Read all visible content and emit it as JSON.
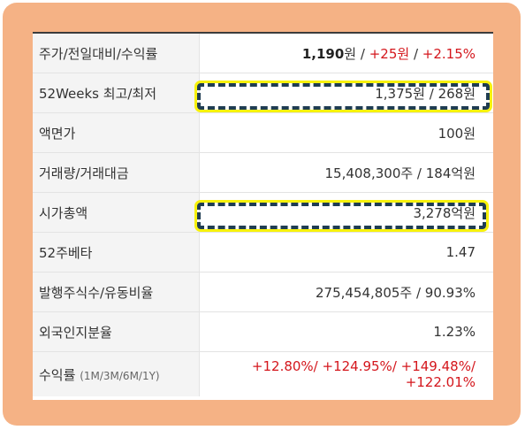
{
  "rows": [
    {
      "label": "주가/전일대비/수익률",
      "price": "1,190",
      "unit": "원",
      "sep1": " / ",
      "change": "+25원",
      "sep2": " / ",
      "rate": "+2.15%"
    },
    {
      "label": "52Weeks 최고/최저",
      "value": "1,375원 / 268원"
    },
    {
      "label": "액면가",
      "value": "100원"
    },
    {
      "label": "거래량/거래대금",
      "value": "15,408,300주 / 184억원"
    },
    {
      "label": "시가총액",
      "value": "3,278억원"
    },
    {
      "label": "52주베타",
      "value": "1.47"
    },
    {
      "label": "발행주식수/유동비율",
      "value": "275,454,805주 / 90.93%"
    },
    {
      "label": "외국인지분율",
      "value": "1.23%"
    },
    {
      "label": "수익률",
      "label_sub": "(1M/3M/6M/1Y)",
      "line1": "+12.80%/ +124.95%/ +149.48%/",
      "line2": "+122.01%"
    }
  ],
  "colors": {
    "frame": "#f5b285",
    "positive": "#d4161c",
    "highlight_border": "#1f3d52",
    "highlight_outline": "#f7f20c"
  }
}
